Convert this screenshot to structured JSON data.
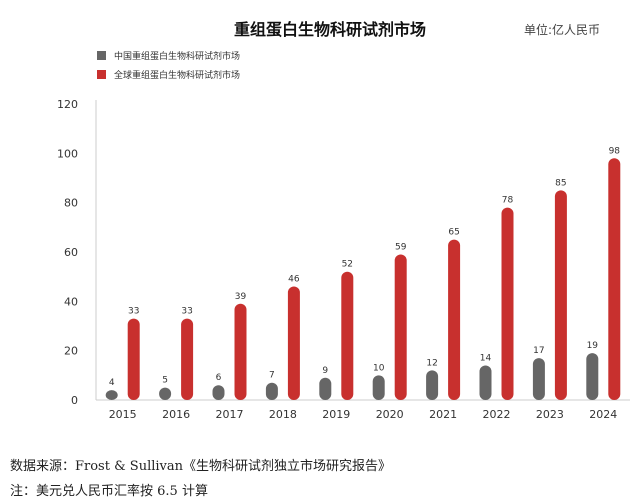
{
  "chart_data": {
    "type": "bar",
    "title": "重组蛋白生物科研试剂市场",
    "unit": "单位:亿人民币",
    "categories": [
      "2015",
      "2016",
      "2017",
      "2018",
      "2019",
      "2020",
      "2021",
      "2022",
      "2023",
      "2024"
    ],
    "series": [
      {
        "name": "中国重组蛋白生物科研试剂市场",
        "color": "#666666",
        "values": [
          4,
          5,
          6,
          7,
          9,
          10,
          12,
          14,
          17,
          19
        ]
      },
      {
        "name": "全球重组蛋白生物科研试剂市场",
        "color": "#c8302e",
        "values": [
          33,
          33,
          39,
          46,
          52,
          59,
          65,
          78,
          85,
          98
        ]
      }
    ],
    "ylim": [
      0,
      120
    ],
    "yticks": [
      0,
      20,
      40,
      60,
      80,
      100,
      120
    ],
    "legend": "top-left",
    "grid": false
  },
  "footer": {
    "source": "数据来源：Frost & Sullivan《生物科研试剂独立市场研究报告》",
    "note": "注：美元兑人民币汇率按 6.5 计算"
  }
}
